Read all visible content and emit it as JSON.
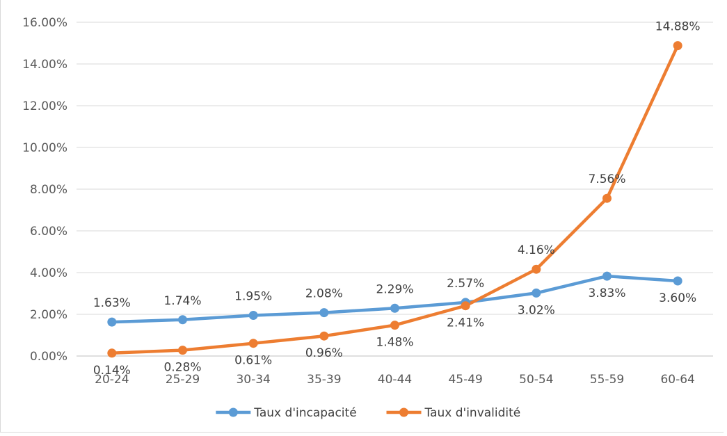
{
  "chart_data": {
    "type": "line",
    "title": "",
    "xlabel": "",
    "ylabel": "",
    "categories": [
      "20-24",
      "25-29",
      "30-34",
      "35-39",
      "40-44",
      "45-49",
      "50-54",
      "55-59",
      "60-64"
    ],
    "ylim": [
      0,
      16
    ],
    "y_ticks": [
      "0.00%",
      "2.00%",
      "4.00%",
      "6.00%",
      "8.00%",
      "10.00%",
      "12.00%",
      "14.00%",
      "16.00%"
    ],
    "grid": true,
    "legend_position": "bottom",
    "series": [
      {
        "name": "Taux d'incapacité",
        "color": "#5B9BD5",
        "values": [
          1.63,
          1.74,
          1.95,
          2.08,
          2.29,
          2.57,
          3.02,
          3.83,
          3.6
        ],
        "labels": [
          "1.63%",
          "1.74%",
          "1.95%",
          "2.08%",
          "2.29%",
          "2.57%",
          "3.02%",
          "3.83%",
          "3.60%"
        ]
      },
      {
        "name": "Taux d'invalidité",
        "color": "#ED7D31",
        "values": [
          0.14,
          0.28,
          0.61,
          0.96,
          1.48,
          2.41,
          4.16,
          7.56,
          14.88
        ],
        "labels": [
          "0.14%",
          "0.28%",
          "0.61%",
          "0.96%",
          "1.48%",
          "2.41%",
          "4.16%",
          "7.56%",
          "14.88%"
        ]
      }
    ]
  }
}
